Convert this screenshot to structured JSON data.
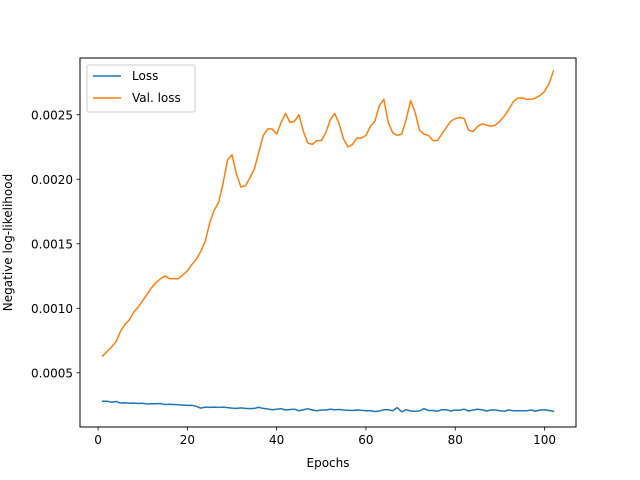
{
  "chart_data": {
    "type": "line",
    "xlabel": "Epochs",
    "ylabel": "Negative log-likelihood",
    "xlim": [
      -4.05,
      107.05
    ],
    "ylim": [
      8e-05,
      0.00294
    ],
    "xticks": [
      0,
      20,
      40,
      60,
      80,
      100
    ],
    "yticks": [
      0.0005,
      0.001,
      0.0015,
      0.002,
      0.0025
    ],
    "ytick_labels": [
      "0.0005",
      "0.0010",
      "0.0015",
      "0.0020",
      "0.0025"
    ],
    "grid": false,
    "legend_position": "top-left",
    "series": [
      {
        "name": "Loss",
        "color": "#1f77b4",
        "x": [
          1,
          2,
          3,
          4,
          5,
          6,
          7,
          8,
          9,
          10,
          11,
          12,
          13,
          14,
          15,
          16,
          17,
          18,
          19,
          20,
          21,
          22,
          23,
          24,
          25,
          26,
          27,
          28,
          29,
          30,
          31,
          32,
          33,
          34,
          35,
          36,
          37,
          38,
          39,
          40,
          41,
          42,
          43,
          44,
          45,
          46,
          47,
          48,
          49,
          50,
          51,
          52,
          53,
          54,
          55,
          56,
          57,
          58,
          59,
          60,
          61,
          62,
          63,
          64,
          65,
          66,
          67,
          68,
          69,
          70,
          71,
          72,
          73,
          74,
          75,
          76,
          77,
          78,
          79,
          80,
          81,
          82,
          83,
          84,
          85,
          86,
          87,
          88,
          89,
          90,
          91,
          92,
          93,
          94,
          95,
          96,
          97,
          98,
          99,
          100,
          101,
          102
        ],
        "y": [
          0.00028,
          0.00028,
          0.000272,
          0.000278,
          0.000266,
          0.000268,
          0.000264,
          0.000266,
          0.000262,
          0.000264,
          0.000258,
          0.00026,
          0.00026,
          0.000262,
          0.000254,
          0.000256,
          0.000254,
          0.000252,
          0.00025,
          0.000248,
          0.000248,
          0.00024,
          0.000226,
          0.000234,
          0.000232,
          0.000234,
          0.000232,
          0.000234,
          0.00023,
          0.000226,
          0.000224,
          0.000228,
          0.000224,
          0.000222,
          0.000224,
          0.000232,
          0.000224,
          0.00022,
          0.000214,
          0.000218,
          0.000222,
          0.000212,
          0.000216,
          0.000218,
          0.000206,
          0.000214,
          0.000222,
          0.000212,
          0.000206,
          0.000212,
          0.000212,
          0.000218,
          0.000214,
          0.000216,
          0.000212,
          0.00021,
          0.000208,
          0.000212,
          0.00021,
          0.000206,
          0.000206,
          0.0002,
          0.000204,
          0.000214,
          0.000214,
          0.000206,
          0.00023,
          0.000198,
          0.000214,
          0.000204,
          0.000202,
          0.000204,
          0.000222,
          0.000208,
          0.000208,
          0.000202,
          0.000214,
          0.000214,
          0.000204,
          0.000212,
          0.00021,
          0.000218,
          0.000204,
          0.000212,
          0.000218,
          0.000214,
          0.000204,
          0.000212,
          0.000212,
          0.000206,
          0.000202,
          0.000212,
          0.000206,
          0.000206,
          0.000206,
          0.000206,
          0.000212,
          0.000202,
          0.000212,
          0.000214,
          0.000208,
          0.000202
        ]
      },
      {
        "name": "Val. loss",
        "color": "#ff7f0e",
        "x": [
          1,
          2,
          3,
          4,
          5,
          6,
          7,
          8,
          9,
          10,
          11,
          12,
          13,
          14,
          15,
          16,
          17,
          18,
          19,
          20,
          21,
          22,
          23,
          24,
          25,
          26,
          27,
          28,
          29,
          30,
          31,
          32,
          33,
          34,
          35,
          36,
          37,
          38,
          39,
          40,
          41,
          42,
          43,
          44,
          45,
          46,
          47,
          48,
          49,
          50,
          51,
          52,
          53,
          54,
          55,
          56,
          57,
          58,
          59,
          60,
          61,
          62,
          63,
          64,
          65,
          66,
          67,
          68,
          69,
          70,
          71,
          72,
          73,
          74,
          75,
          76,
          77,
          78,
          79,
          80,
          81,
          82,
          83,
          84,
          85,
          86,
          87,
          88,
          89,
          90,
          91,
          92,
          93,
          94,
          95,
          96,
          97,
          98,
          99,
          100,
          101,
          102
        ],
        "y": [
          0.00063,
          0.000665,
          0.0007,
          0.00074,
          0.00082,
          0.000875,
          0.00091,
          0.00097,
          0.00101,
          0.00106,
          0.00111,
          0.00116,
          0.0012,
          0.00123,
          0.00125,
          0.00123,
          0.00123,
          0.00123,
          0.00126,
          0.00129,
          0.00134,
          0.00138,
          0.00144,
          0.00152,
          0.00166,
          0.00176,
          0.00182,
          0.00197,
          0.00215,
          0.00219,
          0.00204,
          0.00194,
          0.00195,
          0.00201,
          0.00208,
          0.00221,
          0.00234,
          0.00239,
          0.00239,
          0.00235,
          0.00244,
          0.00251,
          0.00244,
          0.00245,
          0.0025,
          0.00237,
          0.00228,
          0.00227,
          0.0023,
          0.0023,
          0.00236,
          0.00246,
          0.00251,
          0.00243,
          0.00231,
          0.00225,
          0.00227,
          0.00232,
          0.00232,
          0.00234,
          0.00241,
          0.00245,
          0.00257,
          0.00262,
          0.00244,
          0.00236,
          0.00234,
          0.00235,
          0.00246,
          0.00261,
          0.00252,
          0.00238,
          0.00235,
          0.00234,
          0.0023,
          0.0023,
          0.00235,
          0.0024,
          0.00245,
          0.00247,
          0.00248,
          0.00247,
          0.00238,
          0.00237,
          0.00241,
          0.00243,
          0.00242,
          0.00241,
          0.00242,
          0.00245,
          0.00249,
          0.00254,
          0.0026,
          0.00263,
          0.00263,
          0.00262,
          0.00262,
          0.00263,
          0.00265,
          0.00268,
          0.00274,
          0.00284
        ]
      }
    ]
  }
}
